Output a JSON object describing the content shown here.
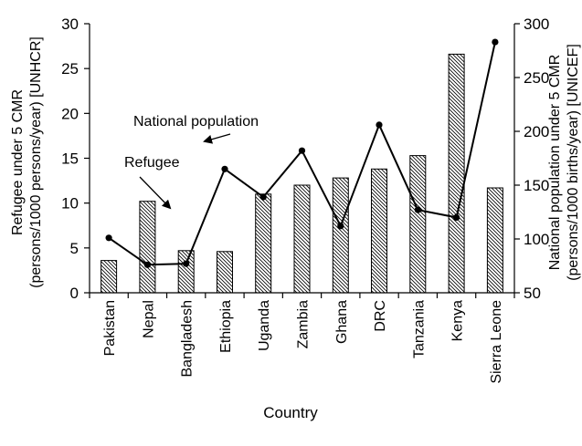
{
  "chart_data": {
    "type": "bar",
    "categories": [
      "Pakistan",
      "Nepal",
      "Bangladesh",
      "Ethiopia",
      "Uganda",
      "Zambia",
      "Ghana",
      "DRC",
      "Tanzania",
      "Kenya",
      "Sierra Leone"
    ],
    "xlabel": "Country",
    "ylabel_left_line1": "Refugee under 5 CMR",
    "ylabel_left_line2": "(persons/1000 persons/year) [UNHCR]",
    "ylabel_right_line1": "National population under 5 CMR",
    "ylabel_right_line2": "(persons/1000 births/year) [UNICEF]",
    "ylim_left": [
      0,
      30
    ],
    "ylim_right": [
      50,
      300
    ],
    "yticks_left": [
      0,
      5,
      10,
      15,
      20,
      25,
      30
    ],
    "yticks_right": [
      50,
      100,
      150,
      200,
      250,
      300
    ],
    "grid": false,
    "series": [
      {
        "name": "Refugee",
        "type": "bar",
        "axis": "left",
        "pattern": "diagonal-hatch",
        "values": [
          3.6,
          10.2,
          4.7,
          4.6,
          11.0,
          12.0,
          12.8,
          13.8,
          15.3,
          26.6,
          11.7
        ]
      },
      {
        "name": "National population",
        "type": "line",
        "axis": "right",
        "values": [
          101,
          76,
          77,
          165,
          139,
          182,
          112,
          206,
          127,
          120,
          283
        ]
      }
    ],
    "annotations": [
      {
        "text": "National population",
        "target_series": "National population",
        "target_index": 3
      },
      {
        "text": "Refugee",
        "target_series": "Refugee",
        "target_index": 1
      }
    ]
  }
}
